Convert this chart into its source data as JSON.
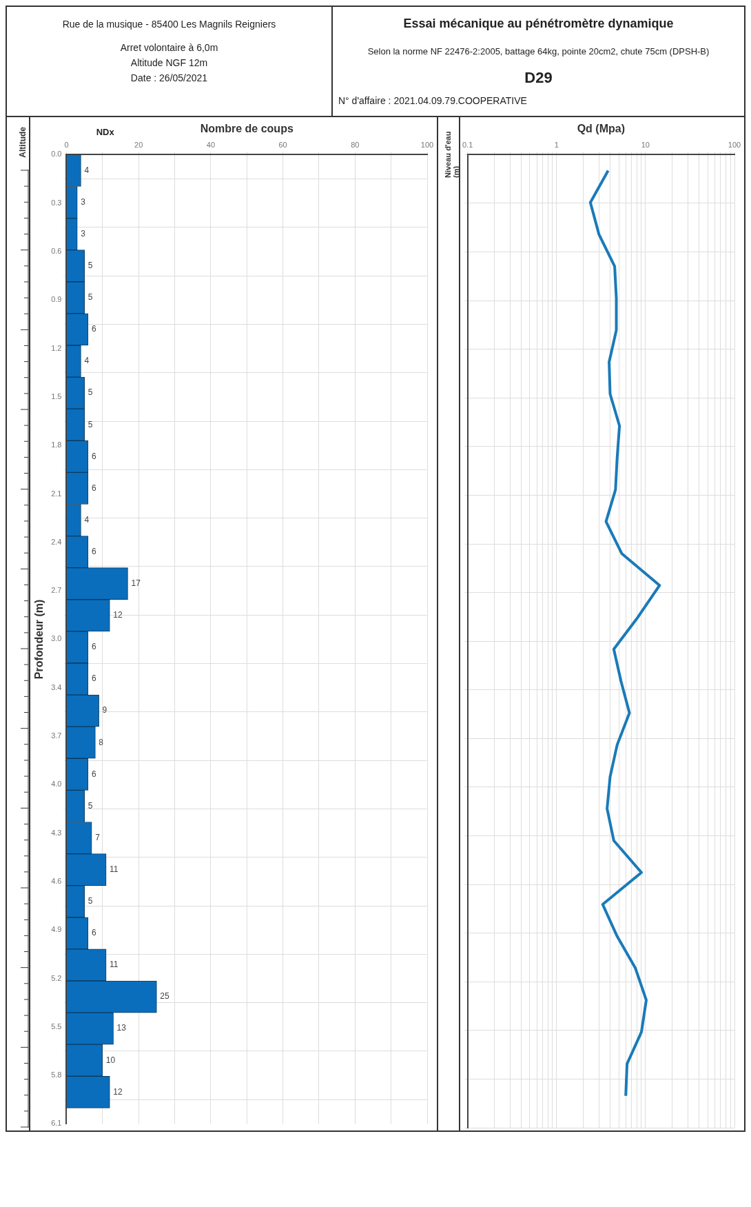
{
  "chart_data": [
    {
      "type": "bar",
      "orientation": "horizontal",
      "annotations": [
        "Rue de la musique - 85400 Les Magnils Reigniers",
        "Arret volontaire à 6,0m",
        "Altitude NGF 12m",
        "Date :  26/05/2021",
        "Altitude",
        "NDx",
        "Niveau d'eau (m)"
      ],
      "xlabel": "Nombre de coups",
      "ylabel": "Profondeur (m)",
      "x": [
        0.1,
        0.3,
        0.5,
        0.7,
        0.9,
        1.1,
        1.3,
        1.5,
        1.7,
        1.9,
        2.1,
        2.3,
        2.5,
        2.7,
        2.9,
        3.1,
        3.3,
        3.5,
        3.7,
        3.9,
        4.1,
        4.3,
        4.5,
        4.7,
        4.9,
        5.1,
        5.3,
        5.5,
        5.7,
        5.9
      ],
      "values": [
        4,
        3,
        3,
        5,
        5,
        6,
        4,
        5,
        5,
        6,
        6,
        4,
        6,
        17,
        12,
        6,
        6,
        9,
        8,
        6,
        5,
        7,
        11,
        5,
        6,
        11,
        25,
        13,
        10,
        12
      ],
      "color": "#0a6ebd",
      "data_labels": true,
      "xlim": [
        0,
        100
      ],
      "xticks": [
        0,
        {
          "value": 10,
          "label": null
        },
        20,
        {
          "value": 30,
          "label": null
        },
        40,
        {
          "value": 50,
          "label": null
        },
        60,
        {
          "value": 70,
          "label": null
        },
        80,
        {
          "value": 90,
          "label": null
        },
        100
      ],
      "ylim": [
        6.1,
        0
      ],
      "yticks": [
        {
          "value": 0,
          "label": "0.0"
        },
        {
          "value": 0.305,
          "label": "0.3"
        },
        {
          "value": 0.61,
          "label": "0.6"
        },
        {
          "value": 0.915,
          "label": "0.9"
        },
        {
          "value": 1.22,
          "label": "1.2"
        },
        {
          "value": 1.525,
          "label": "1.5"
        },
        {
          "value": 1.83,
          "label": "1.8"
        },
        {
          "value": 2.135,
          "label": "2.1"
        },
        {
          "value": 2.44,
          "label": "2.4"
        },
        {
          "value": 2.745,
          "label": "2.7"
        },
        {
          "value": 3.05,
          "label": "3.0"
        },
        {
          "value": 3.355,
          "label": "3.4"
        },
        {
          "value": 3.66,
          "label": "3.7"
        },
        {
          "value": 3.965,
          "label": "4.0"
        },
        {
          "value": 4.27,
          "label": "4.3"
        },
        {
          "value": 4.575,
          "label": "4.6"
        },
        {
          "value": 4.88,
          "label": "4.9"
        },
        {
          "value": 5.185,
          "label": "5.2"
        },
        {
          "value": 5.49,
          "label": "5.5"
        },
        {
          "value": 5.795,
          "label": "5.8"
        },
        {
          "value": 6.1,
          "label": "6.1"
        }
      ],
      "grid": true,
      "legend": false
    },
    {
      "type": "line",
      "orientation": "horizontal",
      "xlabel": "Qd (Mpa)",
      "title": "Essai mécanique au pénétromètre dynamique",
      "subtitle": "Selon la norme NF 22476-2:2005, battage 64kg, pointe 20cm2, chute 75cm (DPSH-B)",
      "annotations": [
        "D29",
        "N° d'affaire : 2021.04.09.79.COOPERATIVE"
      ],
      "log": "x",
      "marker": "none",
      "color": "#1a7ab8",
      "x": [
        0.1,
        0.3,
        0.5,
        0.7,
        0.9,
        1.1,
        1.3,
        1.5,
        1.7,
        1.9,
        2.1,
        2.3,
        2.5,
        2.7,
        2.9,
        3.1,
        3.3,
        3.5,
        3.7,
        3.9,
        4.1,
        4.3,
        4.5,
        4.7,
        4.9,
        5.1,
        5.3,
        5.5,
        5.7,
        5.9
      ],
      "values": [
        3.8,
        2.4,
        3.0,
        4.5,
        4.7,
        4.7,
        3.9,
        4.0,
        5.1,
        4.8,
        4.6,
        3.6,
        5.4,
        14.4,
        8.2,
        4.4,
        5.3,
        6.6,
        4.8,
        4.0,
        3.7,
        4.4,
        9.0,
        3.3,
        4.8,
        7.7,
        10.2,
        9.0,
        6.2,
        6.0
      ],
      "xlim": [
        0.1,
        100
      ],
      "xticks": [
        0.1,
        {
          "value": 0.2,
          "label": null
        },
        {
          "value": 0.3,
          "label": null
        },
        {
          "value": 0.4,
          "label": null
        },
        {
          "value": 0.5,
          "label": null
        },
        {
          "value": 0.6,
          "label": null
        },
        {
          "value": 0.7,
          "label": null
        },
        {
          "value": 0.8,
          "label": null
        },
        {
          "value": 0.9,
          "label": null
        },
        1,
        {
          "value": 2,
          "label": null
        },
        {
          "value": 3,
          "label": null
        },
        {
          "value": 4,
          "label": null
        },
        {
          "value": 5,
          "label": null
        },
        {
          "value": 6,
          "label": null
        },
        {
          "value": 7,
          "label": null
        },
        {
          "value": 8,
          "label": null
        },
        {
          "value": 9,
          "label": null
        },
        10,
        {
          "value": 20,
          "label": null
        },
        {
          "value": 30,
          "label": null
        },
        {
          "value": 40,
          "label": null
        },
        {
          "value": 50,
          "label": null
        },
        {
          "value": 60,
          "label": null
        },
        {
          "value": 70,
          "label": null
        },
        {
          "value": 80,
          "label": null
        },
        {
          "value": 90,
          "label": null
        },
        100
      ],
      "ylim": [
        6.1,
        0
      ],
      "yticks": [
        {
          "value": 0,
          "label": null
        },
        {
          "value": 0.305,
          "label": null
        },
        {
          "value": 0.61,
          "label": null
        },
        {
          "value": 0.915,
          "label": null
        },
        {
          "value": 1.22,
          "label": null
        },
        {
          "value": 1.525,
          "label": null
        },
        {
          "value": 1.83,
          "label": null
        },
        {
          "value": 2.135,
          "label": null
        },
        {
          "value": 2.44,
          "label": null
        },
        {
          "value": 2.745,
          "label": null
        },
        {
          "value": 3.05,
          "label": null
        },
        {
          "value": 3.355,
          "label": null
        },
        {
          "value": 3.66,
          "label": null
        },
        {
          "value": 3.965,
          "label": null
        },
        {
          "value": 4.27,
          "label": null
        },
        {
          "value": 4.575,
          "label": null
        },
        {
          "value": 4.88,
          "label": null
        },
        {
          "value": 5.185,
          "label": null
        },
        {
          "value": 5.49,
          "label": null
        },
        {
          "value": 5.795,
          "label": null
        },
        {
          "value": 6.1,
          "label": null
        }
      ],
      "tick_labels": "x",
      "grid": true,
      "legend": false
    }
  ]
}
